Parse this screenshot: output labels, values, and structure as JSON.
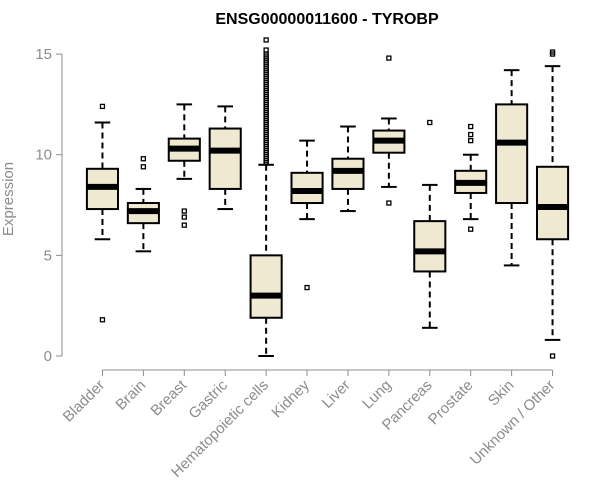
{
  "chart_data": {
    "type": "box",
    "title": "ENSG00000011600 - TYROBP",
    "xlabel": "",
    "ylabel": "Expression",
    "ylim": [
      0,
      15.5
    ],
    "yticks": [
      0,
      5,
      10,
      15
    ],
    "box_fill": "#f0e9d2",
    "box_stroke": "#000000",
    "categories": [
      "Bladder",
      "Brain",
      "Breast",
      "Gastric",
      "Hematopoietic cells",
      "Kidney",
      "Liver",
      "Lung",
      "Pancreas",
      "Prostate",
      "Skin",
      "Unknown / Other"
    ],
    "boxes": [
      {
        "low": 5.8,
        "q1": 7.3,
        "median": 8.4,
        "q3": 9.3,
        "high": 11.6,
        "outliers": [
          12.4,
          1.8
        ]
      },
      {
        "low": 5.2,
        "q1": 6.6,
        "median": 7.2,
        "q3": 7.6,
        "high": 8.3,
        "outliers": [
          9.8,
          9.4
        ]
      },
      {
        "low": 8.8,
        "q1": 9.7,
        "median": 10.3,
        "q3": 10.8,
        "high": 12.5,
        "outliers": [
          7.2,
          6.9,
          6.5
        ]
      },
      {
        "low": 7.3,
        "q1": 8.3,
        "median": 10.2,
        "q3": 11.3,
        "high": 12.4,
        "outliers": []
      },
      {
        "low": 0.0,
        "q1": 1.9,
        "median": 3.0,
        "q3": 5.0,
        "high": 9.5,
        "outliers": [
          9.6,
          9.7,
          9.8,
          9.9,
          10.0,
          10.1,
          10.2,
          10.3,
          10.4,
          10.5,
          10.6,
          10.7,
          10.8,
          10.9,
          11.0,
          11.1,
          11.2,
          11.3,
          11.4,
          11.5,
          11.6,
          11.7,
          11.8,
          11.9,
          12.0,
          12.1,
          12.2,
          12.3,
          12.4,
          12.5,
          12.6,
          12.7,
          12.8,
          12.9,
          13.0,
          13.1,
          13.2,
          13.3,
          13.4,
          13.5,
          13.6,
          13.7,
          13.8,
          13.9,
          14.0,
          14.1,
          14.2,
          14.3,
          14.4,
          14.5,
          14.6,
          14.7,
          14.8,
          14.9,
          15.0,
          15.2,
          15.7
        ]
      },
      {
        "low": 6.8,
        "q1": 7.6,
        "median": 8.2,
        "q3": 9.1,
        "high": 10.7,
        "outliers": [
          3.4
        ]
      },
      {
        "low": 7.2,
        "q1": 8.3,
        "median": 9.2,
        "q3": 9.8,
        "high": 11.4,
        "outliers": []
      },
      {
        "low": 8.4,
        "q1": 10.1,
        "median": 10.7,
        "q3": 11.2,
        "high": 11.8,
        "outliers": [
          14.8,
          7.6
        ]
      },
      {
        "low": 1.4,
        "q1": 4.2,
        "median": 5.2,
        "q3": 6.7,
        "high": 8.5,
        "outliers": [
          11.6
        ]
      },
      {
        "low": 6.8,
        "q1": 8.1,
        "median": 8.6,
        "q3": 9.2,
        "high": 10.0,
        "outliers": [
          11.4,
          11.0,
          10.7,
          6.3
        ]
      },
      {
        "low": 4.5,
        "q1": 7.6,
        "median": 10.6,
        "q3": 12.5,
        "high": 14.2,
        "outliers": []
      },
      {
        "low": 0.8,
        "q1": 5.8,
        "median": 7.4,
        "q3": 9.4,
        "high": 14.4,
        "outliers": [
          15.1,
          15.0,
          0.0
        ]
      }
    ]
  }
}
